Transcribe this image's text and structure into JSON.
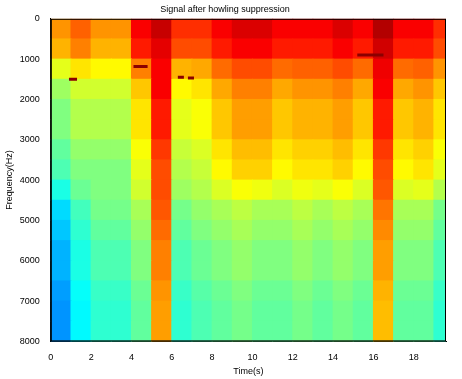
{
  "chart_data": {
    "type": "heatmap",
    "title": "Signal after howling suppression",
    "x_label": "Time(s)",
    "y_label": "Frequency(Hz)",
    "xlim": [
      0,
      19.6
    ],
    "xticks": [
      0,
      2,
      4,
      6,
      8,
      10,
      12,
      14,
      16,
      18
    ],
    "ylim": [
      8000,
      0
    ],
    "yticks": [
      0,
      1000,
      2000,
      3000,
      4000,
      5000,
      6000,
      7000,
      8000
    ],
    "grid": false,
    "heatmap": {
      "zlim": [
        0,
        1
      ],
      "x_bins": [
        0,
        1,
        2,
        3,
        4,
        5,
        6,
        7,
        8,
        9,
        10,
        11,
        12,
        13,
        14,
        15,
        16,
        17,
        18,
        19,
        19.6
      ],
      "y_bins": [
        0,
        500,
        1000,
        1500,
        2000,
        2500,
        3000,
        3500,
        4000,
        4500,
        5000,
        5500,
        6000,
        6500,
        7000,
        7500,
        8000
      ],
      "cells": [
        [
          0.73,
          0.78,
          0.73,
          0.73,
          0.88,
          0.93,
          0.83,
          0.83,
          0.88,
          0.91,
          0.91,
          0.88,
          0.88,
          0.88,
          0.91,
          0.88,
          0.95,
          0.88,
          0.88,
          0.83
        ],
        [
          0.7,
          0.75,
          0.7,
          0.7,
          0.85,
          0.9,
          0.8,
          0.8,
          0.85,
          0.88,
          0.88,
          0.85,
          0.85,
          0.85,
          0.88,
          0.85,
          0.92,
          0.85,
          0.85,
          0.8
        ],
        [
          0.6,
          0.65,
          0.63,
          0.63,
          0.75,
          0.88,
          0.7,
          0.71,
          0.77,
          0.8,
          0.8,
          0.77,
          0.78,
          0.78,
          0.8,
          0.77,
          0.89,
          0.77,
          0.78,
          0.73
        ],
        [
          0.53,
          0.58,
          0.58,
          0.58,
          0.68,
          0.88,
          0.63,
          0.65,
          0.71,
          0.75,
          0.75,
          0.71,
          0.73,
          0.73,
          0.75,
          0.71,
          0.88,
          0.71,
          0.73,
          0.68
        ],
        [
          0.5,
          0.55,
          0.55,
          0.55,
          0.65,
          0.85,
          0.6,
          0.62,
          0.68,
          0.72,
          0.72,
          0.68,
          0.7,
          0.7,
          0.72,
          0.68,
          0.85,
          0.68,
          0.7,
          0.65
        ],
        [
          0.5,
          0.55,
          0.55,
          0.55,
          0.65,
          0.85,
          0.6,
          0.62,
          0.68,
          0.72,
          0.72,
          0.68,
          0.7,
          0.7,
          0.72,
          0.68,
          0.85,
          0.68,
          0.7,
          0.65
        ],
        [
          0.47,
          0.52,
          0.52,
          0.52,
          0.62,
          0.82,
          0.57,
          0.59,
          0.65,
          0.69,
          0.69,
          0.65,
          0.67,
          0.67,
          0.69,
          0.65,
          0.82,
          0.65,
          0.67,
          0.62
        ],
        [
          0.45,
          0.5,
          0.5,
          0.5,
          0.6,
          0.8,
          0.55,
          0.57,
          0.63,
          0.67,
          0.67,
          0.63,
          0.65,
          0.65,
          0.67,
          0.63,
          0.8,
          0.63,
          0.65,
          0.6
        ],
        [
          0.4,
          0.48,
          0.5,
          0.5,
          0.58,
          0.8,
          0.53,
          0.55,
          0.59,
          0.62,
          0.61,
          0.59,
          0.61,
          0.6,
          0.62,
          0.59,
          0.79,
          0.59,
          0.6,
          0.55
        ],
        [
          0.34,
          0.44,
          0.49,
          0.49,
          0.54,
          0.79,
          0.49,
          0.52,
          0.54,
          0.56,
          0.54,
          0.54,
          0.56,
          0.54,
          0.56,
          0.54,
          0.76,
          0.54,
          0.54,
          0.49
        ],
        [
          0.32,
          0.42,
          0.47,
          0.47,
          0.52,
          0.77,
          0.47,
          0.5,
          0.52,
          0.54,
          0.52,
          0.52,
          0.54,
          0.52,
          0.54,
          0.52,
          0.74,
          0.52,
          0.52,
          0.47
        ],
        [
          0.3,
          0.4,
          0.45,
          0.45,
          0.5,
          0.75,
          0.45,
          0.48,
          0.5,
          0.52,
          0.5,
          0.5,
          0.52,
          0.5,
          0.52,
          0.5,
          0.72,
          0.5,
          0.5,
          0.45
        ],
        [
          0.3,
          0.4,
          0.45,
          0.45,
          0.5,
          0.75,
          0.45,
          0.48,
          0.5,
          0.52,
          0.5,
          0.5,
          0.52,
          0.5,
          0.52,
          0.5,
          0.72,
          0.5,
          0.5,
          0.45
        ],
        [
          0.28,
          0.38,
          0.43,
          0.43,
          0.48,
          0.73,
          0.43,
          0.46,
          0.48,
          0.5,
          0.48,
          0.48,
          0.5,
          0.48,
          0.5,
          0.48,
          0.7,
          0.48,
          0.48,
          0.43
        ],
        [
          0.27,
          0.37,
          0.42,
          0.42,
          0.47,
          0.72,
          0.42,
          0.45,
          0.47,
          0.49,
          0.47,
          0.47,
          0.49,
          0.47,
          0.49,
          0.47,
          0.69,
          0.47,
          0.47,
          0.42
        ],
        [
          0.27,
          0.37,
          0.42,
          0.42,
          0.47,
          0.72,
          0.42,
          0.45,
          0.47,
          0.49,
          0.47,
          0.47,
          0.49,
          0.47,
          0.49,
          0.47,
          0.69,
          0.47,
          0.47,
          0.42
        ]
      ]
    },
    "series": [
      {
        "type": "line",
        "color": "#8b0000",
        "x": [
          0.9,
          1.3
        ],
        "values": [
          1500,
          1500
        ]
      },
      {
        "type": "line",
        "color": "#8b0000",
        "x": [
          4.1,
          4.8
        ],
        "values": [
          1180,
          1180
        ]
      },
      {
        "type": "line",
        "color": "#8b0000",
        "x": [
          6.3,
          6.6
        ],
        "values": [
          1450,
          1450
        ]
      },
      {
        "type": "line",
        "color": "#8b0000",
        "x": [
          6.8,
          7.1
        ],
        "values": [
          1470,
          1470
        ]
      },
      {
        "type": "line",
        "color": "#8b0000",
        "x": [
          15.2,
          16.5
        ],
        "values": [
          900,
          900
        ]
      }
    ]
  }
}
